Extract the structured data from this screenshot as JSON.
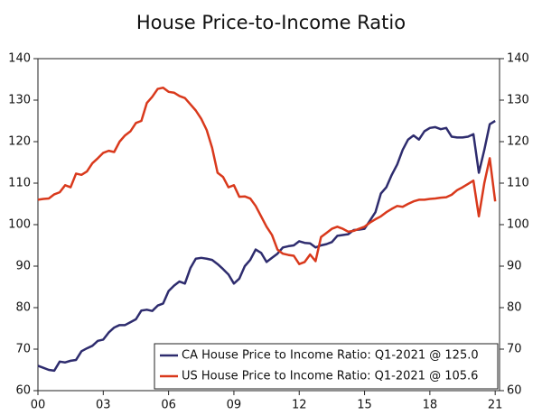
{
  "chart_data": {
    "type": "line",
    "title": "House Price-to-Income Ratio",
    "x": [
      2000,
      2000.25,
      2000.5,
      2000.75,
      2001,
      2001.25,
      2001.5,
      2001.75,
      2002,
      2002.25,
      2002.5,
      2002.75,
      2003,
      2003.25,
      2003.5,
      2003.75,
      2004,
      2004.25,
      2004.5,
      2004.75,
      2005,
      2005.25,
      2005.5,
      2005.75,
      2006,
      2006.25,
      2006.5,
      2006.75,
      2007,
      2007.25,
      2007.5,
      2007.75,
      2008,
      2008.25,
      2008.5,
      2008.75,
      2009,
      2009.25,
      2009.5,
      2009.75,
      2010,
      2010.25,
      2010.5,
      2010.75,
      2011,
      2011.25,
      2011.5,
      2011.75,
      2012,
      2012.25,
      2012.5,
      2012.75,
      2013,
      2013.25,
      2013.5,
      2013.75,
      2014,
      2014.25,
      2014.5,
      2014.75,
      2015,
      2015.25,
      2015.5,
      2015.75,
      2016,
      2016.25,
      2016.5,
      2016.75,
      2017,
      2017.25,
      2017.5,
      2017.75,
      2018,
      2018.25,
      2018.5,
      2018.75,
      2019,
      2019.25,
      2019.5,
      2019.75,
      2020,
      2020.25,
      2020.5,
      2020.75,
      2021
    ],
    "series": [
      {
        "name": "CA House Price to Income Ratio: Q1-2021 @ 125.0",
        "color": "#2e2c6e",
        "values": [
          66,
          65.5,
          65,
          64.8,
          67,
          66.8,
          67.2,
          67.4,
          69.5,
          70.2,
          70.8,
          72,
          72.3,
          74,
          75.2,
          75.8,
          75.8,
          76.5,
          77.2,
          79.3,
          79.5,
          79.2,
          80.5,
          81,
          84,
          85.3,
          86.3,
          85.8,
          89.5,
          91.8,
          92,
          91.8,
          91.5,
          90.5,
          89.3,
          88,
          85.8,
          87,
          90,
          91.5,
          94,
          93.2,
          91,
          92,
          93,
          94.5,
          94.8,
          95,
          96,
          95.6,
          95.5,
          94.5,
          95,
          95.3,
          95.8,
          97.3,
          97.5,
          97.7,
          98.7,
          98.8,
          99,
          101,
          103,
          107.5,
          109,
          112,
          114.5,
          118,
          120.5,
          121.5,
          120.5,
          122.5,
          123.3,
          123.5,
          123,
          123.3,
          121.2,
          121,
          121,
          121.2,
          121.8,
          112.5,
          118,
          124.2,
          125.0
        ]
      },
      {
        "name": "US House Price to Income Ratio: Q1-2021 @ 105.6",
        "color": "#d9391c",
        "values": [
          106,
          106.2,
          106.3,
          107.3,
          107.8,
          109.5,
          109,
          112.3,
          112,
          112.8,
          114.8,
          116,
          117.3,
          117.8,
          117.5,
          120,
          121.5,
          122.5,
          124.5,
          125,
          129.3,
          130.8,
          132.7,
          133,
          132,
          131.8,
          131,
          130.5,
          129,
          127.5,
          125.5,
          122.8,
          118.5,
          112.5,
          111.5,
          109,
          109.5,
          106.7,
          106.8,
          106.3,
          104.5,
          102,
          99.5,
          97.5,
          94,
          93,
          92.7,
          92.5,
          90.5,
          91,
          92.8,
          91.2,
          97,
          98,
          99,
          99.5,
          99,
          98.3,
          98.5,
          99,
          99.5,
          100.5,
          101.3,
          102,
          103,
          103.8,
          104.5,
          104.3,
          105,
          105.6,
          106,
          106,
          106.2,
          106.3,
          106.5,
          106.6,
          107.2,
          108.3,
          109,
          109.8,
          110.6,
          102,
          110,
          116,
          105.6
        ]
      }
    ],
    "xlim": [
      2000,
      2021.2
    ],
    "xticks": [
      {
        "value": 2000,
        "label": "00"
      },
      {
        "value": 2003,
        "label": "03"
      },
      {
        "value": 2006,
        "label": "06"
      },
      {
        "value": 2009,
        "label": "09"
      },
      {
        "value": 2012,
        "label": "12"
      },
      {
        "value": 2015,
        "label": "15"
      },
      {
        "value": 2018,
        "label": "18"
      },
      {
        "value": 2021,
        "label": "21"
      }
    ],
    "ylim": [
      60,
      140
    ],
    "yticks": [
      60,
      70,
      80,
      90,
      100,
      110,
      120,
      130,
      140
    ],
    "y2lim": [
      60,
      140
    ],
    "y2ticks": [
      60,
      70,
      80,
      90,
      100,
      110,
      120,
      130,
      140
    ],
    "legend": "lower right"
  }
}
